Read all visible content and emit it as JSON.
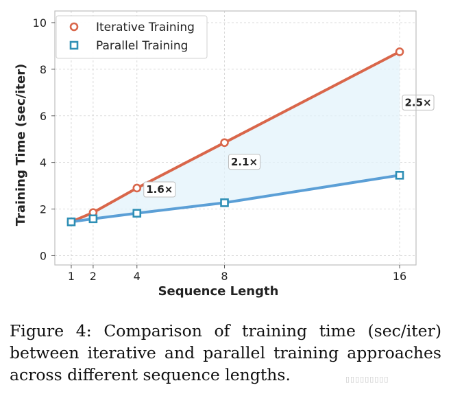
{
  "chart_data": {
    "type": "line",
    "xlabel": "Sequence Length",
    "ylabel": "Training Time (sec/iter)",
    "xlim": [
      0.25,
      16.75
    ],
    "ylim": [
      -0.4,
      10.5
    ],
    "x_ticks": [
      1,
      2,
      4,
      8,
      16
    ],
    "y_ticks": [
      0,
      2,
      4,
      6,
      8,
      10
    ],
    "grid": true,
    "legend_position": "top-left",
    "shaded_region_between_series": true,
    "series": [
      {
        "name": "Iterative Training",
        "color": "#d9664a",
        "marker": "circle",
        "x": [
          1,
          2,
          4,
          8,
          16
        ],
        "y": [
          1.45,
          1.85,
          2.9,
          4.85,
          8.75
        ]
      },
      {
        "name": "Parallel Training",
        "color": "#5b9fd6",
        "marker_edge_color": "#2e8fb5",
        "marker": "square",
        "x": [
          1,
          2,
          4,
          8,
          16
        ],
        "y": [
          1.45,
          1.58,
          1.82,
          2.27,
          3.45
        ]
      }
    ],
    "annotations": [
      {
        "text": "1.6×",
        "x": 4,
        "y": 2.9
      },
      {
        "text": "2.1×",
        "x": 8,
        "y": 4.85
      },
      {
        "text": "2.5×",
        "x": 16,
        "y": 8.75
      }
    ]
  },
  "caption": "Figure 4: Comparison of training time (sec/iter) between iterative and parallel training approaches across different sequence lengths.",
  "watermark": "▯▯▯▯▯▯▯▯▯"
}
